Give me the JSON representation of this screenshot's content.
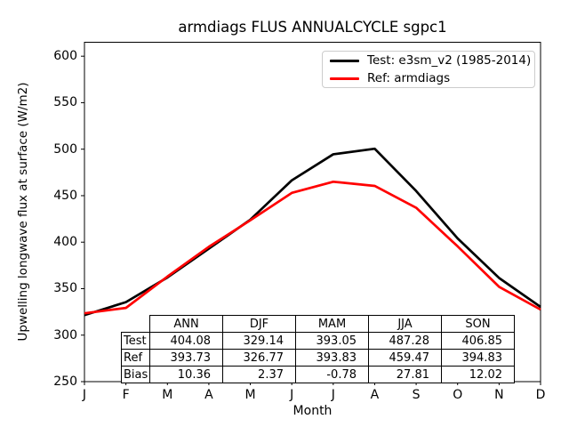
{
  "title": "armdiags FLUS ANNUALCYCLE sgpc1",
  "axes": {
    "xlabel": "Month",
    "ylabel": "Upwelling longwave flux at surface (W/m2)"
  },
  "legend": {
    "entries": [
      {
        "label": "Test: e3sm_v2 (1985-2014)",
        "color": "#000000"
      },
      {
        "label": "Ref: armdiags",
        "color": "#ff0000"
      }
    ]
  },
  "chart_data": {
    "type": "line",
    "title": "armdiags FLUS ANNUALCYCLE sgpc1",
    "xlabel": "Month",
    "ylabel": "Upwelling longwave flux at surface (W/m2)",
    "x": [
      "J",
      "F",
      "M",
      "A",
      "M",
      "J",
      "J",
      "A",
      "S",
      "O",
      "N",
      "D"
    ],
    "ylim": [
      250,
      615
    ],
    "yticks": [
      250,
      300,
      350,
      400,
      450,
      500,
      550,
      600
    ],
    "grid": false,
    "legend_position": "upper right",
    "series": [
      {
        "name": "Test: e3sm_v2 (1985-2014)",
        "color": "#000000",
        "values": [
          321.5,
          335.5,
          362.0,
          393.0,
          424.2,
          466.5,
          494.5,
          500.5,
          455.0,
          404.0,
          361.5,
          330.4
        ]
      },
      {
        "name": "Ref: armdiags",
        "color": "#ff0000",
        "values": [
          323.5,
          329.3,
          363.0,
          395.0,
          423.5,
          453.0,
          465.0,
          460.5,
          437.0,
          395.5,
          352.0,
          327.5
        ]
      }
    ]
  },
  "stats_table": {
    "columns": [
      "ANN",
      "DJF",
      "MAM",
      "JJA",
      "SON"
    ],
    "rows": [
      {
        "label": "Test",
        "values": [
          "404.08",
          "329.14",
          "393.05",
          "487.28",
          "406.85"
        ]
      },
      {
        "label": "Ref",
        "values": [
          "393.73",
          "326.77",
          "393.83",
          "459.47",
          "394.83"
        ]
      },
      {
        "label": "Bias",
        "values": [
          "10.36",
          "2.37",
          "-0.78",
          "27.81",
          "12.02"
        ]
      }
    ]
  }
}
